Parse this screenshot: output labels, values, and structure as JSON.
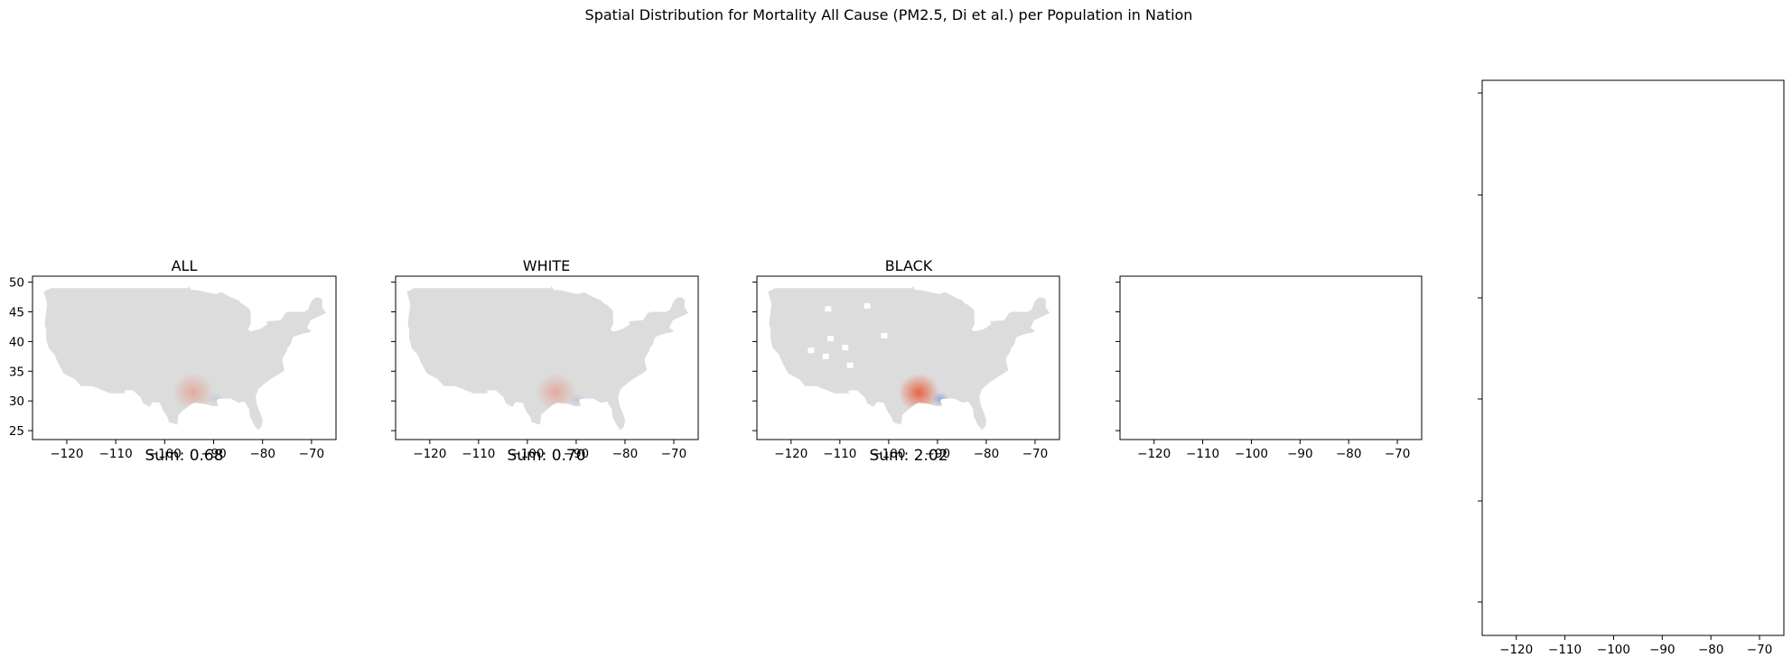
{
  "figure": {
    "title": "Spatial Distribution for Mortality  All Cause (PM2.5, Di et al.) per Population in Nation"
  },
  "chart_data": [
    {
      "type": "heatmap",
      "title": "ALL",
      "sum_label": "Sum: 0.68",
      "xlim": [
        -127,
        -65
      ],
      "ylim": [
        23.5,
        51
      ],
      "xticks": [
        -120,
        -110,
        -100,
        -90,
        -80,
        -70
      ],
      "yticks": [
        25,
        30,
        35,
        40,
        45,
        50
      ],
      "show_map": true,
      "hotspots": [
        {
          "lon": -94.2,
          "lat": 31.5,
          "sign": "positive",
          "intensity": 0.35
        },
        {
          "lon": -89.6,
          "lat": 30.4,
          "sign": "negative",
          "intensity": 0.15
        }
      ]
    },
    {
      "type": "heatmap",
      "title": "WHITE",
      "sum_label": "Sum: 0.70",
      "xlim": [
        -127,
        -65
      ],
      "ylim": [
        23.5,
        51
      ],
      "xticks": [
        -120,
        -110,
        -100,
        -90,
        -80,
        -70
      ],
      "yticks": [
        25,
        30,
        35,
        40,
        45,
        50
      ],
      "show_map": true,
      "hotspots": [
        {
          "lon": -94.2,
          "lat": 31.5,
          "sign": "positive",
          "intensity": 0.35
        },
        {
          "lon": -89.8,
          "lat": 30.2,
          "sign": "negative",
          "intensity": 0.2
        }
      ]
    },
    {
      "type": "heatmap",
      "title": "BLACK",
      "sum_label": "Sum: 2.02",
      "xlim": [
        -127,
        -65
      ],
      "ylim": [
        23.5,
        51
      ],
      "xticks": [
        -120,
        -110,
        -100,
        -90,
        -80,
        -70
      ],
      "yticks": [
        25,
        30,
        35,
        40,
        45,
        50
      ],
      "show_map": true,
      "hotspots": [
        {
          "lon": -93.8,
          "lat": 31.4,
          "sign": "positive",
          "intensity": 0.85
        },
        {
          "lon": -89.4,
          "lat": 30.3,
          "sign": "negative",
          "intensity": 0.55
        }
      ]
    },
    {
      "type": "heatmap",
      "title": "",
      "sum_label": "",
      "xlim": [
        -127,
        -65
      ],
      "ylim": [
        23.5,
        51
      ],
      "xticks": [
        -120,
        -110,
        -100,
        -90,
        -80,
        -70
      ],
      "yticks": [
        25,
        30,
        35,
        40,
        45,
        50
      ],
      "show_map": false,
      "hotspots": []
    },
    {
      "type": "heatmap",
      "title": "",
      "sum_label": "",
      "xlim": [
        -127,
        -65
      ],
      "ylim": [
        23.5,
        51
      ],
      "xticks": [
        -120,
        -110,
        -100,
        -90,
        -80,
        -70
      ],
      "yticks": [
        25,
        30,
        35,
        40,
        45,
        50
      ],
      "show_map": false,
      "hotspots": []
    }
  ],
  "colors": {
    "land": "#dcdcdc",
    "positive": "#e8502c",
    "negative": "#5b7fdc",
    "axis": "#000000"
  }
}
